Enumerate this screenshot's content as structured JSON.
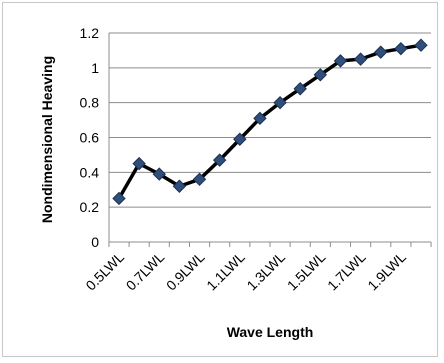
{
  "chart_data": {
    "type": "line",
    "title": "",
    "xlabel": "Wave Length",
    "ylabel": "Nondimensional Heaving",
    "ylim": [
      0,
      1.2
    ],
    "yticks": [
      0,
      0.2,
      0.4,
      0.6,
      0.8,
      1,
      1.2
    ],
    "ytick_labels": [
      "0",
      "0.2",
      "0.4",
      "0.6",
      "0.8",
      "1",
      "1.2"
    ],
    "x": [
      0.5,
      0.6,
      0.7,
      0.8,
      0.9,
      1.0,
      1.1,
      1.2,
      1.3,
      1.4,
      1.5,
      1.6,
      1.7,
      1.8,
      1.9,
      2.0
    ],
    "xtick_labels": [
      "0.5LWL",
      "0.7LWL",
      "0.9LWL",
      "1.1LWL",
      "1.3LWL",
      "1.5LWL",
      "1.7LWL",
      "1.9LWL"
    ],
    "xtick_values": [
      0.5,
      0.7,
      0.9,
      1.1,
      1.3,
      1.5,
      1.7,
      1.9
    ],
    "grid": "horizontal",
    "legend": "none",
    "series": [
      {
        "values": [
          0.25,
          0.45,
          0.39,
          0.32,
          0.36,
          0.47,
          0.59,
          0.71,
          0.8,
          0.88,
          0.96,
          1.04,
          1.05,
          1.09,
          1.11,
          1.13
        ],
        "line_color": "#000000",
        "marker": "diamond",
        "marker_color": "#2f4e7c"
      }
    ]
  }
}
